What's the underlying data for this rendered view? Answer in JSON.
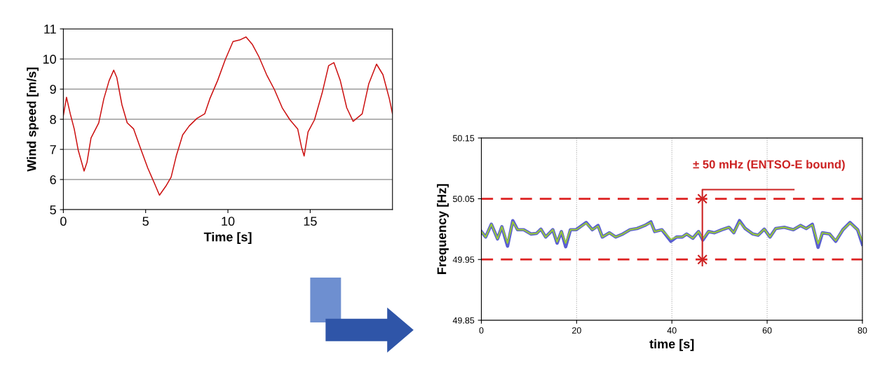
{
  "chart_data": [
    {
      "type": "line",
      "xlabel": "Time [s]",
      "ylabel": "Wind speed [m/s]",
      "xlim": [
        0,
        20
      ],
      "xticks": [
        0,
        5,
        10,
        15
      ],
      "ylim": [
        5,
        11
      ],
      "yticks": [
        5,
        6,
        7,
        8,
        9,
        10,
        11
      ],
      "grid": "y",
      "legend": false,
      "series": [
        {
          "color": "#cc1111",
          "x": [
            0,
            0.19,
            0.42,
            0.66,
            0.9,
            1.26,
            1.44,
            1.68,
            2.15,
            2.46,
            2.78,
            3.06,
            3.25,
            3.56,
            3.88,
            4.27,
            4.66,
            5.13,
            5.53,
            5.84,
            6.23,
            6.55,
            6.86,
            7.25,
            7.65,
            8.12,
            8.59,
            8.9,
            9.37,
            9.84,
            10.31,
            10.71,
            11.1,
            11.49,
            11.88,
            12.35,
            12.83,
            13.3,
            13.77,
            14.24,
            14.47,
            14.63,
            14.87,
            15.26,
            15.73,
            16.12,
            16.44,
            16.83,
            17.22,
            17.61,
            18.16,
            18.56,
            19.03,
            19.42,
            19.81,
            20.0
          ],
          "values": [
            8.12,
            8.73,
            8.18,
            7.68,
            6.98,
            6.28,
            6.58,
            7.38,
            7.88,
            8.68,
            9.28,
            9.63,
            9.38,
            8.48,
            7.88,
            7.68,
            7.08,
            6.38,
            5.88,
            5.48,
            5.78,
            6.08,
            6.78,
            7.48,
            7.78,
            8.03,
            8.18,
            8.68,
            9.28,
            9.98,
            10.58,
            10.63,
            10.73,
            10.48,
            10.08,
            9.48,
            8.98,
            8.38,
            7.98,
            7.68,
            7.08,
            6.78,
            7.58,
            7.98,
            8.88,
            9.78,
            9.88,
            9.28,
            8.38,
            7.93,
            8.18,
            9.18,
            9.83,
            9.48,
            8.68,
            8.18
          ]
        }
      ]
    },
    {
      "type": "line",
      "xlabel": "time [s]",
      "ylabel": "Frequency [Hz]",
      "xlim": [
        0,
        80
      ],
      "xticks": [
        0,
        20,
        40,
        60,
        80
      ],
      "ylim": [
        49.85,
        50.15
      ],
      "yticks": [
        49.85,
        49.95,
        50.05,
        50.15
      ],
      "grid": "x",
      "legend": false,
      "ref_lines": [
        {
          "axis": "y",
          "value": 50.05,
          "color": "#dd2222",
          "line_style": "dashed"
        },
        {
          "axis": "y",
          "value": 49.95,
          "color": "#dd2222",
          "line_style": "dashed"
        }
      ],
      "annotations": [
        "± 50 mHz (ENTSO-E bound)"
      ],
      "series": [
        {
          "color": "#5a5fd0",
          "x": [
            0,
            0.9,
            2.1,
            3.4,
            4.3,
            5.5,
            6.6,
            7.6,
            8.9,
            10.4,
            11.6,
            12.5,
            13.5,
            15.0,
            15.9,
            16.8,
            17.7,
            18.7,
            19.9,
            22.0,
            23.3,
            24.5,
            25.4,
            26.9,
            28.2,
            29.7,
            31.2,
            32.7,
            34.3,
            35.6,
            36.4,
            37.9,
            39.8,
            41.0,
            42.2,
            43.1,
            44.4,
            45.6,
            46.5,
            47.7,
            48.9,
            50.5,
            52.0,
            53.0,
            54.2,
            55.4,
            57.0,
            58.1,
            59.4,
            60.6,
            61.8,
            63.6,
            65.5,
            67.0,
            68.2,
            69.5,
            70.7,
            71.6,
            73.1,
            74.4,
            75.9,
            77.4,
            79.0,
            80.0
          ],
          "values": [
            49.996,
            49.987,
            50.008,
            49.984,
            50.004,
            49.972,
            50.014,
            49.999,
            49.999,
            49.992,
            49.993,
            50.0,
            49.987,
            49.999,
            49.977,
            49.996,
            49.971,
            49.999,
            49.999,
            50.011,
            49.999,
            50.006,
            49.987,
            49.994,
            49.987,
            49.992,
            49.999,
            50.001,
            50.006,
            50.012,
            49.996,
            49.999,
            49.98,
            49.987,
            49.987,
            49.992,
            49.985,
            49.996,
            49.982,
            49.996,
            49.994,
            49.999,
            50.003,
            49.994,
            50.014,
            50.001,
            49.992,
            49.99,
            50.0,
            49.987,
            50.001,
            50.003,
            49.999,
            50.006,
            50.001,
            50.008,
            49.97,
            49.994,
            49.992,
            49.98,
            49.999,
            50.011,
            49.999,
            49.975
          ]
        },
        {
          "color": "#99cc33",
          "x": [
            0,
            0.9,
            2.1,
            3.4,
            4.3,
            5.5,
            6.6,
            7.6,
            8.9,
            10.4,
            11.6,
            12.5,
            13.5,
            15.0,
            15.9,
            16.8,
            17.7,
            18.7,
            19.9,
            22.0,
            23.3,
            24.5,
            25.4,
            26.9,
            28.2,
            29.7,
            31.2,
            32.7,
            34.3,
            35.6,
            36.4,
            37.9,
            39.8,
            41.0,
            42.2,
            43.1,
            44.4,
            45.6,
            46.5,
            47.7,
            48.9,
            50.5,
            52.0,
            53.0,
            54.2,
            55.4,
            57.0,
            58.1,
            59.4,
            60.6,
            61.8,
            63.6,
            65.5,
            67.0,
            68.2,
            69.5,
            70.7,
            71.6,
            73.1,
            74.4,
            75.9,
            77.4,
            79.0,
            80.0
          ],
          "values": [
            49.996,
            49.987,
            50.008,
            49.984,
            50.004,
            49.977,
            50.012,
            49.999,
            49.999,
            49.992,
            49.993,
            50.0,
            49.987,
            49.999,
            49.979,
            49.996,
            49.977,
            49.999,
            49.999,
            50.01,
            49.999,
            50.005,
            49.987,
            49.994,
            49.987,
            49.992,
            49.999,
            50.001,
            50.006,
            50.011,
            49.996,
            49.999,
            49.983,
            49.987,
            49.987,
            49.992,
            49.985,
            49.996,
            49.984,
            49.996,
            49.994,
            49.999,
            50.003,
            49.994,
            50.012,
            50.001,
            49.992,
            49.99,
            50.0,
            49.987,
            50.001,
            50.003,
            49.999,
            50.006,
            50.001,
            50.007,
            49.976,
            49.994,
            49.992,
            49.981,
            49.999,
            50.01,
            49.999,
            49.98
          ]
        }
      ]
    }
  ]
}
